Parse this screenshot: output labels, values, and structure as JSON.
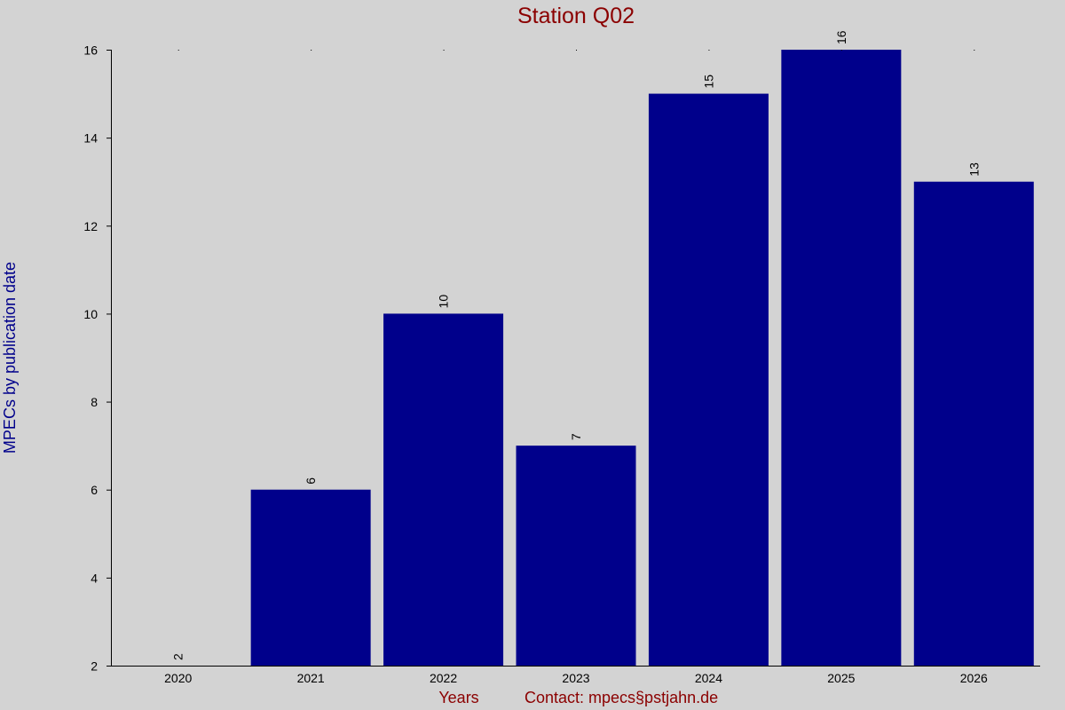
{
  "chart_data": {
    "type": "bar",
    "title": "Station Q02",
    "xlabel": "Years",
    "ylabel": "MPECs by publication date",
    "footer": "Contact: mpecs§pstjahn.de",
    "categories": [
      "2020",
      "2021",
      "2022",
      "2023",
      "2024",
      "2025",
      "2026"
    ],
    "values": [
      2,
      6,
      10,
      7,
      15,
      16,
      13
    ],
    "data_labels": [
      "2",
      "6",
      "10",
      "7",
      "15",
      "16",
      "13"
    ],
    "ylim": [
      2,
      16
    ],
    "yticks": [
      2,
      4,
      6,
      8,
      10,
      12,
      14,
      16
    ],
    "ytick_labels": [
      "2",
      "4",
      "6",
      "8",
      "10",
      "12",
      "14",
      "16"
    ],
    "grid": false,
    "legend": "none",
    "colors": {
      "background": "#d3d3d3",
      "bar": "#00008b",
      "title": "#8b0000",
      "ylabel": "#00008b",
      "xlabel": "#8b0000",
      "axis": "#000000"
    }
  }
}
